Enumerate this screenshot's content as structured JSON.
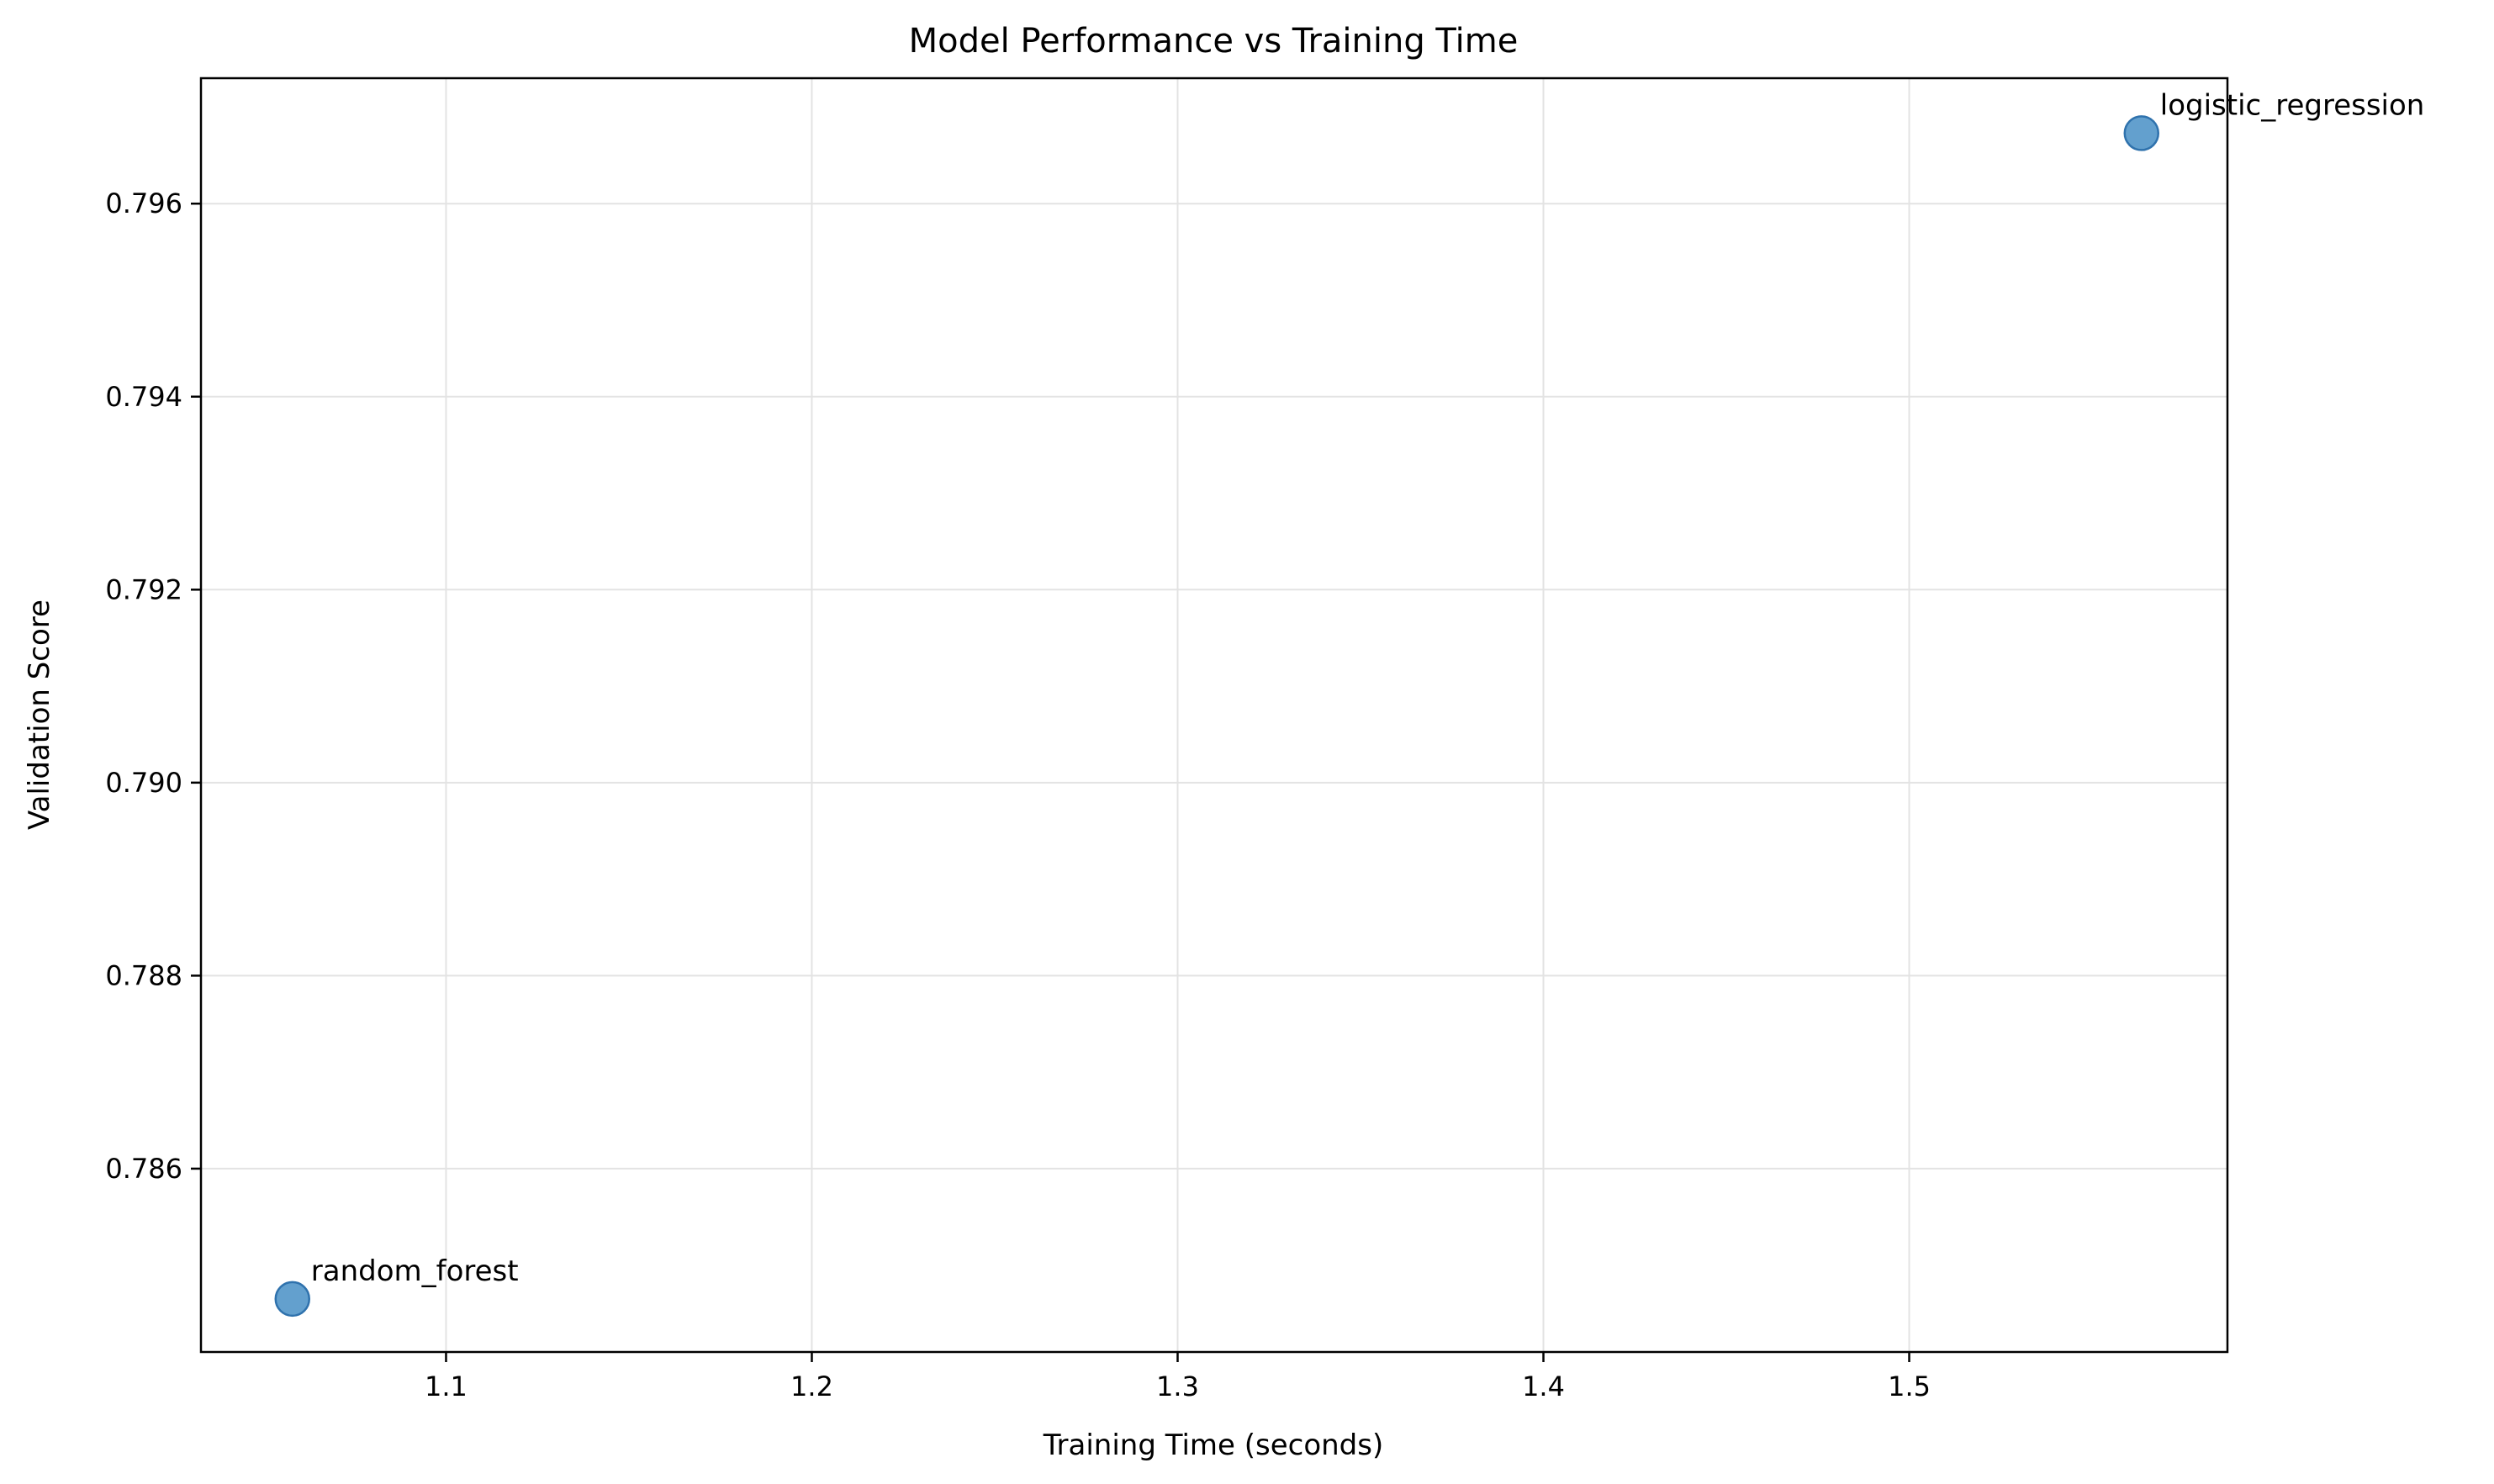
{
  "chart_data": {
    "type": "scatter",
    "title": "Model Performance vs Training Time",
    "xlabel": "Training Time (seconds)",
    "ylabel": "Validation Score",
    "xlim": [
      1.033,
      1.587
    ],
    "ylim": [
      0.7841,
      0.7973
    ],
    "xticks": [
      "1.1",
      "1.2",
      "1.3",
      "1.4",
      "1.5"
    ],
    "yticks": [
      "0.786",
      "0.788",
      "0.790",
      "0.792",
      "0.794",
      "0.796"
    ],
    "grid": true,
    "points": [
      {
        "label": "random_forest",
        "x": 1.058,
        "y": 0.78465
      },
      {
        "label": "logistic_regression",
        "x": 1.5635,
        "y": 0.79673
      }
    ],
    "colors": {
      "marker_fill": "#5b9bcb",
      "marker_edge": "#2f72ad",
      "grid": "#e3e3e3",
      "axis": "#000000"
    }
  }
}
